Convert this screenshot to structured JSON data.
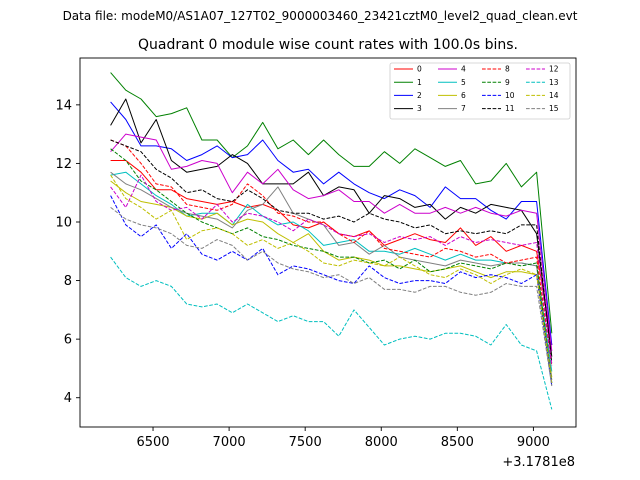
{
  "chart_data": {
    "type": "line",
    "suptitle": "Data file: modeM0/AS1A07_127T02_9000003460_23421cztM0_level2_quad_clean.evt",
    "title": "Quadrant 0 module wise count rates with 100.0s bins.",
    "xlabel": "",
    "ylabel": "",
    "x_offset_label": "+3.1781e8",
    "xlim": [
      6020,
      9280
    ],
    "ylim": [
      3.0,
      15.6
    ],
    "xticks": [
      6500,
      7000,
      7500,
      8000,
      8500,
      9000
    ],
    "xtick_labels": [
      "6500",
      "7000",
      "7500",
      "8000",
      "8500",
      "9000"
    ],
    "yticks": [
      4,
      6,
      8,
      10,
      12,
      14
    ],
    "ytick_labels": [
      "4",
      "6",
      "8",
      "10",
      "12",
      "14"
    ],
    "x": [
      6221,
      6321,
      6421,
      6521,
      6621,
      6721,
      6821,
      6921,
      7021,
      7121,
      7221,
      7321,
      7421,
      7521,
      7621,
      7721,
      7821,
      7921,
      8021,
      8121,
      8221,
      8321,
      8421,
      8521,
      8621,
      8721,
      8821,
      8921,
      9021,
      9121
    ],
    "series": [
      {
        "name": "0",
        "color": "#ff0000",
        "dash": "solid",
        "values": [
          12.1,
          12.1,
          11.7,
          11.1,
          11.1,
          10.8,
          10.7,
          10.6,
          10.7,
          10.5,
          10.6,
          10.4,
          9.9,
          9.8,
          10.0,
          9.6,
          9.5,
          9.7,
          9.2,
          9.4,
          9.6,
          9.4,
          9.3,
          9.8,
          9.2,
          9.5,
          9.0,
          9.2,
          9.0,
          5.8
        ]
      },
      {
        "name": "1",
        "color": "#008000",
        "dash": "solid",
        "values": [
          15.1,
          14.5,
          14.2,
          13.6,
          13.7,
          13.9,
          12.8,
          12.8,
          12.2,
          12.6,
          13.4,
          12.5,
          12.8,
          12.3,
          12.8,
          12.3,
          11.9,
          11.9,
          12.4,
          12.0,
          12.5,
          12.2,
          11.9,
          12.1,
          11.3,
          11.4,
          12.0,
          11.2,
          11.7,
          6.2
        ]
      },
      {
        "name": "2",
        "color": "#0000ff",
        "dash": "solid",
        "values": [
          14.1,
          13.5,
          12.6,
          12.6,
          12.5,
          12.1,
          12.3,
          12.6,
          12.2,
          12.3,
          12.8,
          12.1,
          11.7,
          11.8,
          11.3,
          11.7,
          11.3,
          11.0,
          10.8,
          11.1,
          10.9,
          10.5,
          11.2,
          10.8,
          10.8,
          10.4,
          10.1,
          10.7,
          10.7,
          5.8
        ]
      },
      {
        "name": "3",
        "color": "#000000",
        "dash": "solid",
        "values": [
          13.3,
          14.2,
          12.7,
          13.5,
          12.1,
          11.7,
          11.8,
          11.9,
          12.3,
          12.0,
          11.3,
          11.3,
          11.3,
          11.7,
          10.9,
          11.2,
          11.1,
          10.3,
          10.9,
          10.8,
          10.5,
          10.6,
          10.1,
          10.5,
          10.3,
          10.6,
          10.5,
          10.4,
          9.6,
          5.4
        ]
      },
      {
        "name": "4",
        "color": "#cc00cc",
        "dash": "solid",
        "values": [
          12.4,
          13.0,
          12.9,
          12.8,
          11.8,
          11.9,
          12.1,
          12.0,
          11.0,
          11.7,
          11.3,
          11.8,
          11.1,
          10.8,
          10.9,
          11.1,
          10.7,
          10.7,
          10.3,
          10.6,
          10.3,
          10.3,
          10.5,
          10.3,
          10.5,
          10.3,
          10.2,
          10.4,
          10.3,
          5.6
        ]
      },
      {
        "name": "5",
        "color": "#00bfbf",
        "dash": "solid",
        "values": [
          11.6,
          11.7,
          11.3,
          10.9,
          10.6,
          10.2,
          10.3,
          10.3,
          9.9,
          10.6,
          10.2,
          9.9,
          10.0,
          9.7,
          9.2,
          9.3,
          9.4,
          9.0,
          9.0,
          8.9,
          9.1,
          8.9,
          8.7,
          8.9,
          8.7,
          8.7,
          8.6,
          8.6,
          8.5,
          4.9
        ]
      },
      {
        "name": "6",
        "color": "#bfbf00",
        "dash": "solid",
        "values": [
          11.4,
          11.0,
          10.7,
          10.6,
          10.5,
          10.2,
          10.1,
          10.3,
          9.9,
          10.1,
          10.0,
          9.6,
          9.3,
          9.6,
          9.0,
          8.7,
          8.8,
          8.7,
          8.5,
          8.5,
          8.4,
          8.3,
          8.4,
          8.5,
          8.3,
          8.1,
          8.3,
          8.3,
          8.2,
          4.7
        ]
      },
      {
        "name": "7",
        "color": "#808080",
        "dash": "solid",
        "values": [
          11.7,
          11.3,
          11.1,
          10.8,
          10.5,
          10.3,
          10.2,
          10.1,
          9.8,
          10.4,
          10.6,
          11.2,
          10.3,
          10.1,
          9.9,
          9.2,
          9.3,
          8.9,
          9.2,
          8.8,
          8.7,
          8.6,
          8.5,
          8.7,
          8.6,
          8.5,
          8.6,
          8.6,
          8.5,
          4.6
        ]
      },
      {
        "name": "8",
        "color": "#ff0000",
        "dash": "dashed",
        "values": [
          12.8,
          12.6,
          12.0,
          11.3,
          11.2,
          10.6,
          10.5,
          10.4,
          10.6,
          11.3,
          10.9,
          10.3,
          10.2,
          10.0,
          10.0,
          9.6,
          9.3,
          9.7,
          9.1,
          9.0,
          8.9,
          8.8,
          9.1,
          9.0,
          8.8,
          8.9,
          8.6,
          8.7,
          8.8,
          5.1
        ]
      },
      {
        "name": "9",
        "color": "#008000",
        "dash": "dashed",
        "values": [
          12.5,
          12.1,
          11.4,
          11.1,
          10.7,
          10.3,
          10.0,
          9.8,
          9.6,
          9.8,
          9.5,
          9.4,
          9.2,
          9.1,
          9.0,
          8.8,
          8.8,
          8.6,
          8.7,
          8.4,
          8.7,
          8.3,
          8.4,
          8.6,
          8.5,
          8.4,
          8.6,
          8.5,
          8.6,
          4.5
        ]
      },
      {
        "name": "10",
        "color": "#0000ff",
        "dash": "dashed",
        "values": [
          10.9,
          9.9,
          9.5,
          9.9,
          9.1,
          9.6,
          8.9,
          8.7,
          9.0,
          8.7,
          9.1,
          8.2,
          8.5,
          8.4,
          8.2,
          8.0,
          7.9,
          8.5,
          8.1,
          7.9,
          8.0,
          8.0,
          7.9,
          8.3,
          8.1,
          8.2,
          8.1,
          7.9,
          8.2,
          4.4
        ]
      },
      {
        "name": "11",
        "color": "#000000",
        "dash": "dashed",
        "values": [
          12.8,
          12.6,
          12.4,
          11.8,
          11.5,
          11.0,
          11.1,
          10.8,
          10.7,
          11.1,
          10.8,
          10.4,
          10.3,
          10.3,
          10.1,
          10.2,
          10.0,
          10.3,
          10.1,
          10.0,
          9.8,
          9.9,
          9.6,
          9.7,
          9.6,
          9.7,
          9.6,
          9.9,
          9.9,
          5.2
        ]
      },
      {
        "name": "12",
        "color": "#cc00cc",
        "dash": "dashed",
        "values": [
          11.2,
          10.5,
          11.6,
          10.7,
          10.4,
          10.5,
          10.1,
          10.6,
          10.0,
          10.3,
          10.2,
          10.0,
          9.7,
          10.1,
          9.9,
          9.6,
          9.5,
          9.6,
          9.3,
          9.5,
          9.4,
          9.5,
          9.2,
          9.5,
          9.3,
          9.4,
          9.3,
          9.2,
          9.3,
          5.1
        ]
      },
      {
        "name": "13",
        "color": "#00bfbf",
        "dash": "dashed",
        "values": [
          8.8,
          8.1,
          7.8,
          8.0,
          7.8,
          7.2,
          7.1,
          7.2,
          6.9,
          7.2,
          6.9,
          6.6,
          6.8,
          6.6,
          6.6,
          6.1,
          7.0,
          6.4,
          5.8,
          6.0,
          6.1,
          6.0,
          6.2,
          6.2,
          6.1,
          5.8,
          6.5,
          5.8,
          5.6,
          3.6
        ]
      },
      {
        "name": "14",
        "color": "#bfbf00",
        "dash": "dashed",
        "values": [
          11.6,
          10.8,
          10.5,
          10.1,
          10.4,
          9.4,
          9.7,
          9.8,
          9.6,
          9.2,
          9.4,
          9.1,
          9.3,
          9.0,
          8.6,
          8.5,
          8.7,
          8.6,
          8.5,
          8.8,
          8.5,
          8.2,
          8.1,
          8.4,
          8.2,
          7.9,
          8.2,
          8.4,
          8.2,
          4.5
        ]
      },
      {
        "name": "15",
        "color": "#808080",
        "dash": "dashed",
        "values": [
          10.5,
          10.1,
          9.9,
          9.8,
          9.6,
          9.2,
          9.1,
          9.4,
          9.2,
          8.7,
          9.0,
          8.6,
          8.4,
          8.3,
          8.1,
          8.2,
          7.9,
          8.1,
          7.7,
          7.7,
          7.6,
          7.8,
          7.8,
          7.6,
          7.5,
          7.6,
          7.9,
          7.8,
          7.8,
          4.4
        ]
      }
    ],
    "legend_location": "top-right",
    "legend_columns": 4,
    "grid": false
  }
}
